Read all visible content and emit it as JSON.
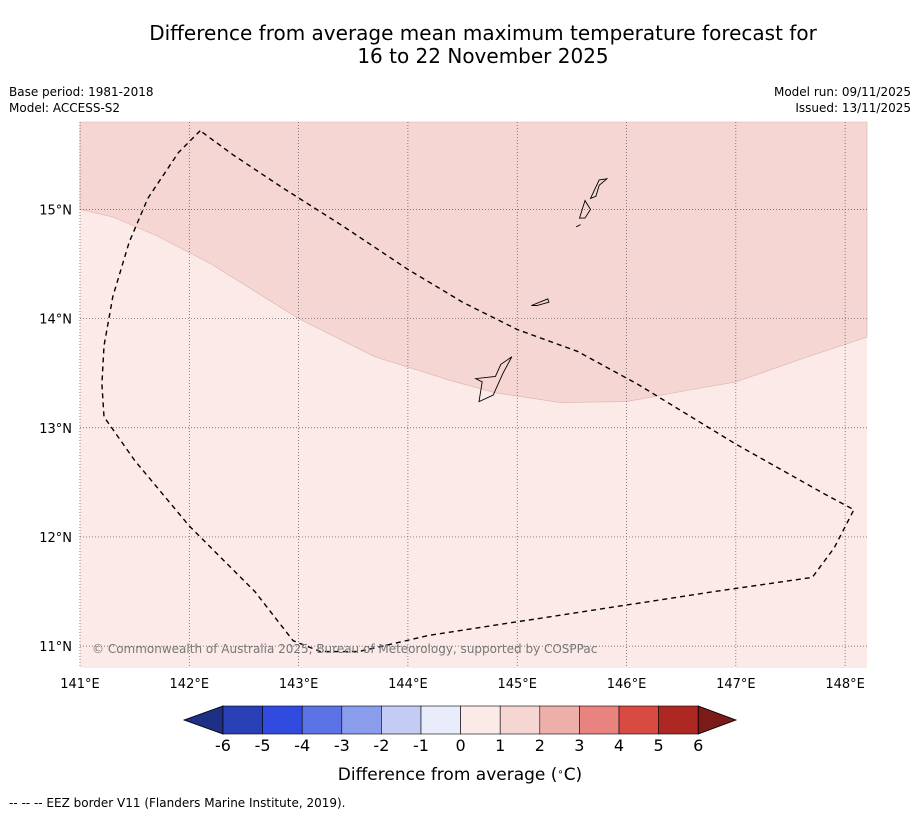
{
  "title": {
    "line1": "Difference from average mean maximum temperature forecast for",
    "line2": "16 to 22 November 2025"
  },
  "meta_left": {
    "base_period": "Base period: 1981-2018",
    "model": "Model: ACCESS-S2"
  },
  "meta_right": {
    "model_run": "Model run: 09/11/2025",
    "issued": "Issued: 13/11/2025"
  },
  "map": {
    "lon_labels": [
      "141°E",
      "142°E",
      "143°E",
      "144°E",
      "145°E",
      "146°E",
      "147°E",
      "148°E"
    ],
    "lat_labels": [
      "15°N",
      "14°N",
      "13°N",
      "12°N",
      "11°N"
    ],
    "lon_range": [
      141.0,
      148.2
    ],
    "lat_range": [
      10.8,
      15.8
    ],
    "copyright": "© Commonwealth of Australia 2025, Bureau of Meteorology, supported by COSPPac",
    "regions": [
      {
        "name": "anomaly 1 to 2 °C",
        "color": "#f5d6d3",
        "location": "northern part, roughly north of 13.3°N to 15°N"
      },
      {
        "name": "anomaly 0 to 1 °C",
        "color": "#fbeae8",
        "location": "southern part"
      }
    ],
    "eez_boundary": [
      [
        142.1,
        15.72
      ],
      [
        141.9,
        15.52
      ],
      [
        141.62,
        15.1
      ],
      [
        141.45,
        14.7
      ],
      [
        141.3,
        14.2
      ],
      [
        141.22,
        13.75
      ],
      [
        141.2,
        13.4
      ],
      [
        141.22,
        13.1
      ],
      [
        141.5,
        12.7
      ],
      [
        142.0,
        12.1
      ],
      [
        142.6,
        11.5
      ],
      [
        142.95,
        11.05
      ],
      [
        143.2,
        10.95
      ],
      [
        143.55,
        10.95
      ],
      [
        144.2,
        11.1
      ],
      [
        145.5,
        11.3
      ],
      [
        146.8,
        11.5
      ],
      [
        147.7,
        11.63
      ],
      [
        147.9,
        11.9
      ],
      [
        148.08,
        12.25
      ],
      [
        147.8,
        12.4
      ],
      [
        147.0,
        12.85
      ],
      [
        146.1,
        13.4
      ],
      [
        145.55,
        13.7
      ],
      [
        145.0,
        13.9
      ],
      [
        144.5,
        14.15
      ],
      [
        144.0,
        14.45
      ],
      [
        143.4,
        14.85
      ],
      [
        142.85,
        15.2
      ],
      [
        142.4,
        15.5
      ],
      [
        142.1,
        15.72
      ]
    ],
    "anomaly_boundary": [
      [
        141.0,
        15.0
      ],
      [
        141.3,
        14.93
      ],
      [
        141.7,
        14.76
      ],
      [
        142.2,
        14.5
      ],
      [
        143.0,
        14.0
      ],
      [
        143.7,
        13.65
      ],
      [
        144.4,
        13.43
      ],
      [
        144.8,
        13.32
      ],
      [
        145.4,
        13.23
      ],
      [
        146.0,
        13.24
      ],
      [
        146.6,
        13.35
      ],
      [
        147.0,
        13.42
      ],
      [
        147.6,
        13.63
      ],
      [
        148.2,
        13.83
      ]
    ],
    "islands": [
      {
        "name": "Guam",
        "outline": [
          [
            144.65,
            13.24
          ],
          [
            144.68,
            13.42
          ],
          [
            144.62,
            13.45
          ],
          [
            144.8,
            13.47
          ],
          [
            144.85,
            13.58
          ],
          [
            144.95,
            13.65
          ],
          [
            144.87,
            13.5
          ],
          [
            144.78,
            13.3
          ]
        ]
      },
      {
        "name": "Rota",
        "outline": [
          [
            145.13,
            14.12
          ],
          [
            145.28,
            14.18
          ],
          [
            145.29,
            14.15
          ],
          [
            145.18,
            14.12
          ]
        ]
      },
      {
        "name": "Tinian",
        "outline": [
          [
            145.57,
            14.92
          ],
          [
            145.62,
            15.08
          ],
          [
            145.67,
            15.0
          ],
          [
            145.62,
            14.92
          ]
        ]
      },
      {
        "name": "Saipan",
        "outline": [
          [
            145.67,
            15.1
          ],
          [
            145.75,
            15.27
          ],
          [
            145.82,
            15.28
          ],
          [
            145.75,
            15.22
          ],
          [
            145.72,
            15.12
          ]
        ]
      },
      {
        "name": "Aguijan",
        "outline": [
          [
            145.54,
            14.84
          ],
          [
            145.58,
            14.86
          ]
        ]
      }
    ]
  },
  "colorbar": {
    "label": "Difference from average (",
    "label_unit": "C)",
    "ticks": [
      "-6",
      "-5",
      "-4",
      "-3",
      "-2",
      "-1",
      "0",
      "1",
      "2",
      "3",
      "4",
      "5",
      "6"
    ],
    "min_color": "#1e2f86",
    "max_color": "#7b1b17",
    "colors": [
      "#283fb5",
      "#314be0",
      "#5c73e6",
      "#8a9ded",
      "#c4cbf5",
      "#e8ecfb",
      "#fbeae8",
      "#f5d6d3",
      "#eeafab",
      "#e8837f",
      "#d94a43",
      "#ad2822"
    ]
  },
  "footnote": "--  --  -- EEZ border V11 (Flanders Marine Institute, 2019)."
}
